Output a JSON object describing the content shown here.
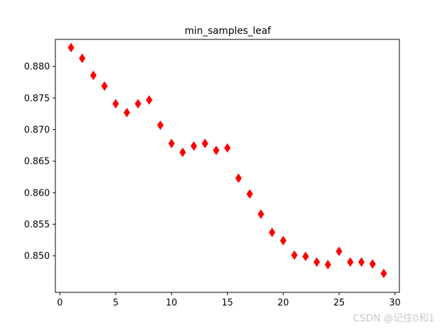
{
  "chart_data": {
    "type": "scatter",
    "title": "min_samples_leaf",
    "xlabel": "",
    "ylabel": "",
    "xlim": [
      -0.4,
      30.4
    ],
    "ylim": [
      0.8453,
      0.8442
    ],
    "x_ticks": [
      0,
      5,
      10,
      15,
      20,
      25,
      30
    ],
    "y_ticks": [
      0.85,
      0.855,
      0.86,
      0.865,
      0.87,
      0.875,
      0.88
    ],
    "y_tick_labels": [
      "0.850",
      "0.855",
      "0.860",
      "0.865",
      "0.870",
      "0.875",
      "0.880"
    ],
    "marker": "thin_diamond",
    "color": "#ff0000",
    "grid": false,
    "points": [
      {
        "x": 1,
        "y": 0.883
      },
      {
        "x": 2,
        "y": 0.8813
      },
      {
        "x": 3,
        "y": 0.8786
      },
      {
        "x": 4,
        "y": 0.8769
      },
      {
        "x": 5,
        "y": 0.8741
      },
      {
        "x": 6,
        "y": 0.8727
      },
      {
        "x": 7,
        "y": 0.8741
      },
      {
        "x": 8,
        "y": 0.8747
      },
      {
        "x": 9,
        "y": 0.8707
      },
      {
        "x": 10,
        "y": 0.8678
      },
      {
        "x": 11,
        "y": 0.8664
      },
      {
        "x": 12,
        "y": 0.8674
      },
      {
        "x": 13,
        "y": 0.8678
      },
      {
        "x": 14,
        "y": 0.8667
      },
      {
        "x": 15,
        "y": 0.8671
      },
      {
        "x": 16,
        "y": 0.8623
      },
      {
        "x": 17,
        "y": 0.8598
      },
      {
        "x": 18,
        "y": 0.8566
      },
      {
        "x": 19,
        "y": 0.8537
      },
      {
        "x": 20,
        "y": 0.8524
      },
      {
        "x": 21,
        "y": 0.8501
      },
      {
        "x": 22,
        "y": 0.8499
      },
      {
        "x": 23,
        "y": 0.849
      },
      {
        "x": 24,
        "y": 0.8486
      },
      {
        "x": 25,
        "y": 0.8507
      },
      {
        "x": 26,
        "y": 0.849
      },
      {
        "x": 27,
        "y": 0.849
      },
      {
        "x": 28,
        "y": 0.8487
      },
      {
        "x": 29,
        "y": 0.8472
      }
    ]
  },
  "watermark": "CSDN @记住0和1"
}
